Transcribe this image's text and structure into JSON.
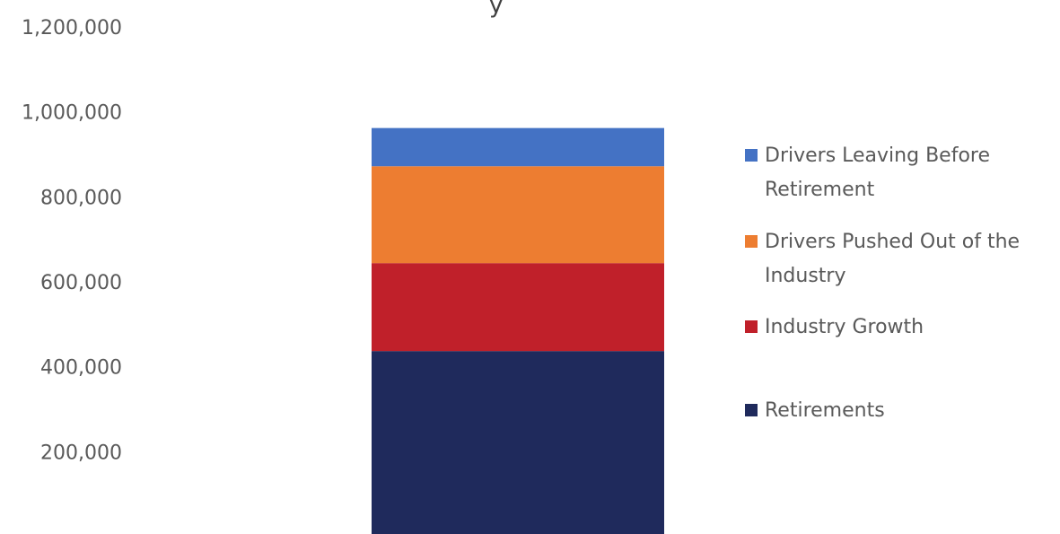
{
  "chart_data": {
    "type": "bar",
    "stacked": true,
    "title_fragment": "y",
    "categories": [
      ""
    ],
    "ylim": [
      0,
      1200000
    ],
    "y_ticks": [
      "1,200,000",
      "1,000,000",
      "800,000",
      "600,000",
      "400,000",
      "200,000"
    ],
    "y_tick_values": [
      1200000,
      1000000,
      800000,
      600000,
      400000,
      200000
    ],
    "grid": false,
    "legend_position": "right",
    "series": [
      {
        "name": "Retirements",
        "values": [
          437000
        ],
        "color": "#1F2A5C"
      },
      {
        "name": "Industry Growth",
        "values": [
          207000
        ],
        "color": "#C0202A"
      },
      {
        "name": "Drivers Pushed Out of the Industry",
        "values": [
          228000
        ],
        "color": "#ED7D31"
      },
      {
        "name": "Drivers Leaving Before Retirement",
        "values": [
          90000
        ],
        "color": "#4472C4"
      }
    ],
    "legend": [
      {
        "series_index": 3,
        "lines": [
          "Drivers Leaving Before",
          "Retirement"
        ]
      },
      {
        "series_index": 2,
        "lines": [
          "Drivers Pushed Out of the",
          "Industry"
        ]
      },
      {
        "series_index": 1,
        "lines": [
          "Industry Growth"
        ]
      },
      {
        "series_index": 0,
        "lines": [
          "Retirements"
        ]
      }
    ]
  }
}
